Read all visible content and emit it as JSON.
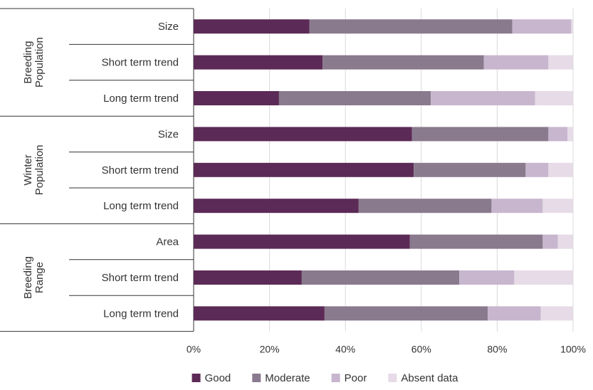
{
  "chart_data": {
    "type": "bar",
    "orientation": "horizontal",
    "stacked": true,
    "title": "",
    "xlabel": "",
    "ylabel": "",
    "xlim": [
      0,
      100
    ],
    "x_ticks": [
      "0%",
      "20%",
      "40%",
      "60%",
      "80%",
      "100%"
    ],
    "legend_position": "bottom",
    "grid": true,
    "groups": [
      {
        "label_lines": [
          "Breeding",
          "Population"
        ],
        "categories": [
          "Size",
          "Short term trend",
          "Long term trend"
        ]
      },
      {
        "label_lines": [
          "Winter",
          "Population"
        ],
        "categories": [
          "Size",
          "Short term trend",
          "Long term trend"
        ]
      },
      {
        "label_lines": [
          "Breeding",
          "Range"
        ],
        "categories": [
          "Area",
          "Short term trend",
          "Long term trend"
        ]
      }
    ],
    "series": [
      {
        "name": "Good",
        "color": "#5c2a56",
        "values": [
          30.5,
          34,
          22.5,
          57.5,
          58,
          43.5,
          57,
          28.5,
          34.5
        ]
      },
      {
        "name": "Moderate",
        "color": "#8a7a8d",
        "values": [
          53.5,
          42.5,
          40,
          36,
          29.5,
          35,
          35,
          41.5,
          43
        ]
      },
      {
        "name": "Poor",
        "color": "#c7b6ce",
        "values": [
          15.5,
          17,
          27.5,
          5,
          6,
          13.5,
          4,
          14.5,
          14
        ]
      },
      {
        "name": "Absent data",
        "color": "#e6dbe6",
        "values": [
          0.5,
          6.5,
          10,
          1.5,
          6.5,
          8,
          4,
          15.5,
          8.5
        ]
      }
    ]
  }
}
